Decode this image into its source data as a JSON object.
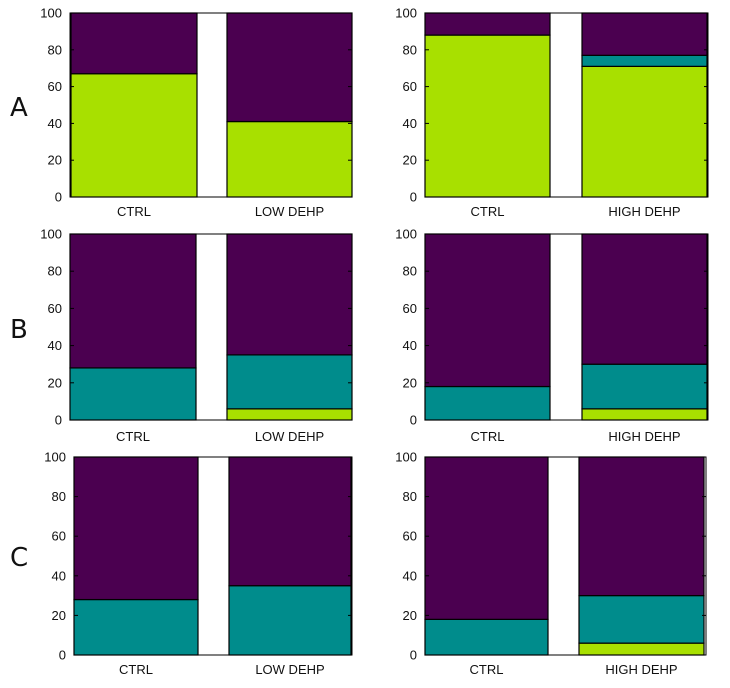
{
  "colors": {
    "lime": "#a8e000",
    "teal": "#008c8c",
    "purple": "#4b0050"
  },
  "row_labels": [
    "A",
    "B",
    "C"
  ],
  "chart_data": [
    {
      "id": "A-left",
      "type": "bar",
      "stacked": true,
      "categories": [
        "CTRL",
        "LOW DEHP"
      ],
      "ylim": [
        0,
        100
      ],
      "yticks": [
        "0",
        "20",
        "40",
        "60",
        "80",
        "100"
      ],
      "series": [
        {
          "name": "lime",
          "color": "#a8e000",
          "values": [
            67,
            41
          ]
        },
        {
          "name": "teal",
          "color": "#008c8c",
          "values": [
            0,
            0
          ]
        },
        {
          "name": "purple",
          "color": "#4b0050",
          "values": [
            33,
            59
          ]
        }
      ]
    },
    {
      "id": "A-right",
      "type": "bar",
      "stacked": true,
      "categories": [
        "CTRL",
        "HIGH DEHP"
      ],
      "ylim": [
        0,
        100
      ],
      "yticks": [
        "0",
        "20",
        "40",
        "60",
        "80",
        "100"
      ],
      "series": [
        {
          "name": "lime",
          "color": "#a8e000",
          "values": [
            88,
            71
          ]
        },
        {
          "name": "teal",
          "color": "#008c8c",
          "values": [
            0,
            6
          ]
        },
        {
          "name": "purple",
          "color": "#4b0050",
          "values": [
            12,
            23
          ]
        }
      ]
    },
    {
      "id": "B-left",
      "type": "bar",
      "stacked": true,
      "categories": [
        "CTRL",
        "LOW DEHP"
      ],
      "ylim": [
        0,
        100
      ],
      "yticks": [
        "0",
        "20",
        "40",
        "60",
        "80",
        "100"
      ],
      "series": [
        {
          "name": "lime",
          "color": "#a8e000",
          "values": [
            0,
            6
          ]
        },
        {
          "name": "teal",
          "color": "#008c8c",
          "values": [
            28,
            29
          ]
        },
        {
          "name": "purple",
          "color": "#4b0050",
          "values": [
            72,
            65
          ]
        }
      ]
    },
    {
      "id": "B-right",
      "type": "bar",
      "stacked": true,
      "categories": [
        "CTRL",
        "HIGH DEHP"
      ],
      "ylim": [
        0,
        100
      ],
      "yticks": [
        "0",
        "20",
        "40",
        "60",
        "80",
        "100"
      ],
      "series": [
        {
          "name": "lime",
          "color": "#a8e000",
          "values": [
            0,
            6
          ]
        },
        {
          "name": "teal",
          "color": "#008c8c",
          "values": [
            18,
            24
          ]
        },
        {
          "name": "purple",
          "color": "#4b0050",
          "values": [
            82,
            70
          ]
        }
      ]
    },
    {
      "id": "C-left",
      "type": "bar",
      "stacked": true,
      "categories": [
        "CTRL",
        "LOW DEHP"
      ],
      "ylim": [
        0,
        100
      ],
      "yticks": [
        "0",
        "20",
        "40",
        "60",
        "80",
        "100"
      ],
      "series": [
        {
          "name": "lime",
          "color": "#a8e000",
          "values": [
            0,
            0
          ]
        },
        {
          "name": "teal",
          "color": "#008c8c",
          "values": [
            28,
            35
          ]
        },
        {
          "name": "purple",
          "color": "#4b0050",
          "values": [
            72,
            65
          ]
        }
      ]
    },
    {
      "id": "C-right",
      "type": "bar",
      "stacked": true,
      "categories": [
        "CTRL",
        "HIGH DEHP"
      ],
      "ylim": [
        0,
        100
      ],
      "yticks": [
        "0",
        "20",
        "40",
        "60",
        "80",
        "100"
      ],
      "series": [
        {
          "name": "lime",
          "color": "#a8e000",
          "values": [
            0,
            6
          ]
        },
        {
          "name": "teal",
          "color": "#008c8c",
          "values": [
            18,
            24
          ]
        },
        {
          "name": "purple",
          "color": "#4b0050",
          "values": [
            82,
            70
          ]
        }
      ]
    }
  ]
}
